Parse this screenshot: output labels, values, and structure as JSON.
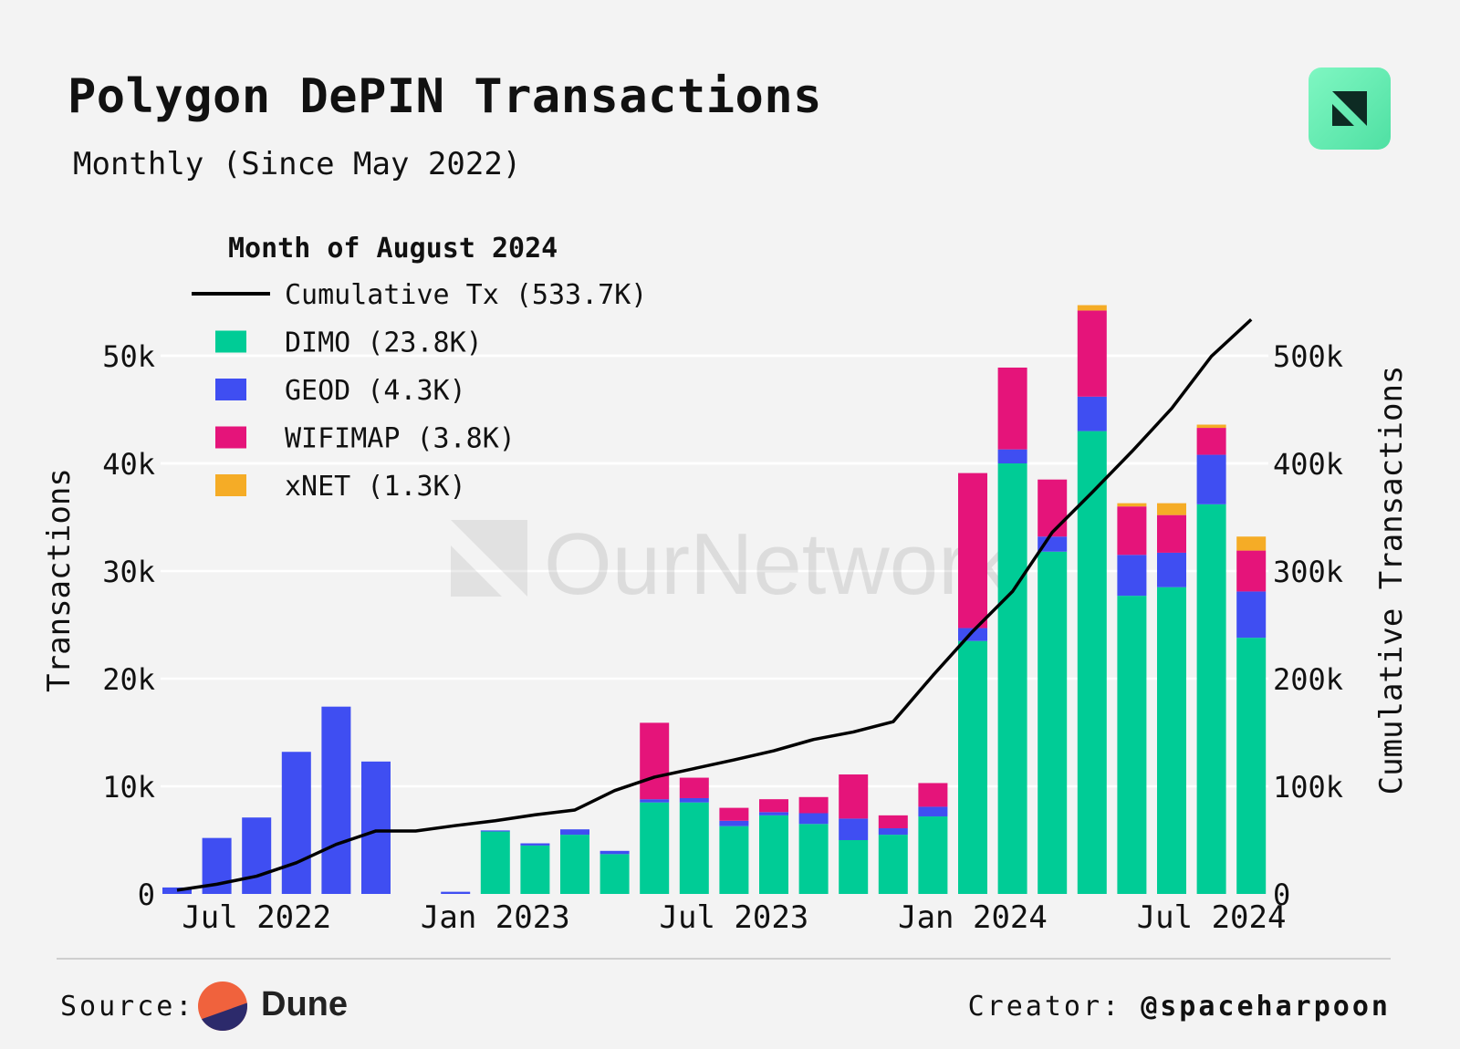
{
  "header": {
    "title": "Polygon DePIN Transactions",
    "subtitle": "Monthly (Since May 2022)",
    "logo_icon": "ournetwork-logo-icon"
  },
  "chart_data": {
    "type": "bar",
    "stacked": true,
    "legend_title": "Month of August 2024",
    "legend_entries": [
      "Cumulative Tx (533.7K)",
      "DIMO (23.8K)",
      "GEOD (4.3K)",
      "WIFIMAP (3.8K)",
      "xNET (1.3K)"
    ],
    "watermark": "OurNetwork",
    "categories": [
      "2022-05",
      "2022-06",
      "2022-07",
      "2022-08",
      "2022-09",
      "2022-10",
      "2022-11",
      "2022-12",
      "2023-01",
      "2023-02",
      "2023-03",
      "2023-04",
      "2023-05",
      "2023-06",
      "2023-07",
      "2023-08",
      "2023-09",
      "2023-10",
      "2023-11",
      "2023-12",
      "2024-01",
      "2024-02",
      "2024-03",
      "2024-04",
      "2024-05",
      "2024-06",
      "2024-07",
      "2024-08"
    ],
    "x_tick_labels": [
      {
        "label": "Jul 2022",
        "category": "2022-07"
      },
      {
        "label": "Jan 2023",
        "category": "2023-01"
      },
      {
        "label": "Jul 2023",
        "category": "2023-07"
      },
      {
        "label": "Jan 2024",
        "category": "2024-01"
      },
      {
        "label": "Jul 2024",
        "category": "2024-07"
      }
    ],
    "ylabel": "Transactions",
    "y2label": "Cumulative Transactions",
    "ylim": [
      0,
      55000
    ],
    "y_ticks": [
      0,
      10000,
      20000,
      30000,
      40000,
      50000
    ],
    "y_tick_labels": [
      "0",
      "10k",
      "20k",
      "30k",
      "40k",
      "50k"
    ],
    "y2lim": [
      0,
      550000
    ],
    "y2_ticks": [
      0,
      100000,
      200000,
      300000,
      400000,
      500000
    ],
    "y2_tick_labels": [
      "0",
      "100k",
      "200k",
      "300k",
      "400k",
      "500k"
    ],
    "grid": true,
    "legend_position": "top-left",
    "series": [
      {
        "name": "DIMO",
        "color": "#00cc96",
        "values": [
          null,
          null,
          null,
          null,
          null,
          null,
          null,
          null,
          5800,
          4500,
          5500,
          3700,
          8500,
          8500,
          6300,
          7300,
          6500,
          5000,
          5500,
          7200,
          23500,
          40000,
          31800,
          43000,
          27700,
          28500,
          36200,
          23800
        ]
      },
      {
        "name": "GEOD",
        "color": "#3f4ef2",
        "values": [
          600,
          5200,
          7100,
          13200,
          17400,
          12300,
          0,
          200,
          100,
          200,
          500,
          300,
          300,
          400,
          500,
          300,
          1000,
          2000,
          600,
          900,
          1200,
          1300,
          1400,
          3200,
          3800,
          3200,
          4600,
          4300
        ]
      },
      {
        "name": "WIFIMAP",
        "color": "#e5147a",
        "values": [
          null,
          null,
          null,
          null,
          null,
          null,
          null,
          null,
          null,
          null,
          null,
          null,
          7100,
          1900,
          1200,
          1200,
          1500,
          4100,
          1200,
          2200,
          14400,
          7600,
          5300,
          8000,
          4500,
          3500,
          2500,
          3800
        ]
      },
      {
        "name": "xNET",
        "color": "#f5ac26",
        "values": [
          null,
          null,
          null,
          null,
          null,
          null,
          null,
          null,
          null,
          null,
          null,
          null,
          null,
          null,
          null,
          null,
          null,
          null,
          null,
          null,
          null,
          null,
          null,
          500,
          300,
          1100,
          300,
          1300
        ]
      },
      {
        "name": "Cumulative Tx",
        "type": "line",
        "axis": "right",
        "color": "#000000",
        "values": [
          3500,
          9000,
          16500,
          29000,
          46000,
          58500,
          58500,
          63500,
          68000,
          73500,
          78000,
          96000,
          108500,
          116500,
          124500,
          133000,
          143500,
          150500,
          160000,
          203000,
          244000,
          281000,
          336000,
          373000,
          411000,
          451000,
          499500,
          533700
        ]
      }
    ]
  },
  "footer": {
    "source_label": "Source:",
    "source_name": "Dune",
    "creator_label": "Creator:",
    "creator_handle": "@spaceharpoon"
  }
}
